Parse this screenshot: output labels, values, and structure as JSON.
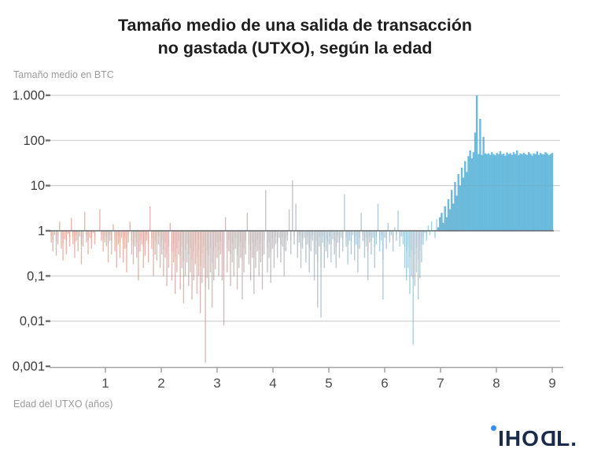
{
  "header": {
    "title_line1": "Tamaño medio de una salida de transacción",
    "title_line2": "no gastada (UTXO), según la edad"
  },
  "axes": {
    "y_caption": "Tamaño medio en BTC",
    "x_caption": "Edad del UTXO (años)"
  },
  "logo": {
    "part1": "IHO",
    "part2": "D",
    "part3": "L.",
    "dot_color": "#3a8ef0",
    "text_color": "#1b2b4a"
  },
  "chart_data": {
    "type": "bar",
    "title": "Tamaño medio de una salida de transacción no gastada (UTXO), según la edad",
    "xlabel": "Edad del UTXO (años)",
    "ylabel": "Tamaño medio en BTC",
    "y_scale": "log",
    "baseline": 1,
    "ylim": [
      0.001,
      1000
    ],
    "xlim": [
      0,
      9.1
    ],
    "grid": "horizontal",
    "y_ticks": [
      "1.000",
      "100",
      "10",
      "1",
      "0,1",
      "0,01",
      "0,001"
    ],
    "y_tick_values": [
      1000,
      100,
      10,
      1,
      0.1,
      0.01,
      0.001
    ],
    "x_ticks": [
      1,
      2,
      3,
      4,
      5,
      6,
      7,
      8,
      9
    ],
    "x_start": 0.03,
    "x_step": 0.03,
    "values": [
      0.55,
      0.35,
      0.8,
      0.28,
      0.5,
      1.6,
      0.4,
      0.22,
      0.65,
      0.3,
      0.85,
      0.45,
      1.9,
      0.5,
      0.25,
      0.6,
      0.35,
      0.75,
      0.18,
      0.45,
      2.6,
      0.55,
      0.3,
      0.7,
      0.4,
      0.9,
      0.5,
      1.0,
      1.0,
      3.0,
      0.6,
      0.35,
      0.55,
      0.45,
      0.2,
      0.6,
      0.3,
      1.4,
      0.35,
      0.15,
      0.5,
      0.25,
      0.7,
      0.2,
      0.4,
      0.12,
      0.55,
      1.6,
      0.3,
      0.18,
      0.45,
      0.25,
      0.08,
      0.35,
      0.5,
      0.15,
      0.28,
      0.6,
      0.2,
      3.5,
      0.4,
      0.1,
      0.3,
      0.22,
      0.5,
      0.15,
      0.3,
      0.1,
      0.25,
      0.06,
      0.15,
      1.5,
      0.08,
      0.2,
      0.04,
      0.12,
      0.3,
      0.05,
      0.15,
      0.025,
      0.1,
      0.2,
      0.06,
      0.12,
      0.03,
      0.08,
      0.18,
      0.04,
      0.1,
      0.015,
      0.07,
      0.15,
      0.0012,
      0.09,
      0.05,
      0.12,
      0.02,
      0.08,
      0.14,
      0.25,
      0.1,
      0.3,
      0.08,
      0.008,
      2.0,
      0.12,
      0.35,
      0.06,
      0.2,
      0.1,
      0.4,
      0.05,
      0.15,
      0.25,
      0.03,
      0.12,
      0.3,
      2.5,
      0.18,
      0.08,
      0.25,
      0.04,
      0.15,
      0.35,
      0.1,
      0.2,
      0.05,
      0.3,
      8.0,
      0.12,
      0.25,
      0.07,
      0.4,
      0.15,
      0.5,
      0.25,
      0.7,
      0.2,
      0.45,
      0.1,
      0.35,
      0.6,
      3.0,
      0.3,
      13,
      0.5,
      4.0,
      0.25,
      0.55,
      0.15,
      0.4,
      0.7,
      0.2,
      0.5,
      0.12,
      0.35,
      0.6,
      0.08,
      0.3,
      0.02,
      0.45,
      0.012,
      0.55,
      0.15,
      0.35,
      0.25,
      0.5,
      0.2,
      0.65,
      0.3,
      0.15,
      0.55,
      0.25,
      0.7,
      0.35,
      6.5,
      0.45,
      0.18,
      0.6,
      0.3,
      0.8,
      0.22,
      0.5,
      0.12,
      0.4,
      2.5,
      0.6,
      0.25,
      0.45,
      0.08,
      0.55,
      0.3,
      0.7,
      0.15,
      0.5,
      4.0,
      0.35,
      0.6,
      0.03,
      0.7,
      0.4,
      1.5,
      0.55,
      0.8,
      0.35,
      1.2,
      0.6,
      2.8,
      0.45,
      0.75,
      0.5,
      0.15,
      0.08,
      0.15,
      0.04,
      0.1,
      0.003,
      0.06,
      0.12,
      0.03,
      0.09,
      0.2,
      0.5,
      0.9,
      0.6,
      1.3,
      0.8,
      1.6,
      1.0,
      0.7,
      1.8,
      1.2,
      2.0,
      2.5,
      1.5,
      3.5,
      2.0,
      5.0,
      3.0,
      8.0,
      4.0,
      12,
      6.0,
      18,
      10,
      25,
      15,
      35,
      20,
      45,
      60,
      40,
      55,
      150,
      1000,
      50,
      300,
      48,
      120,
      52,
      50,
      52,
      48,
      55,
      50,
      47,
      53,
      50,
      58,
      49,
      51,
      46,
      54,
      50,
      52,
      48,
      55,
      50,
      60,
      47,
      52,
      49,
      53,
      50,
      48,
      55,
      51,
      46,
      52,
      50,
      57,
      48,
      53,
      50,
      49,
      55,
      52,
      47,
      50,
      53
    ],
    "color_stops": [
      [
        0,
        "#df8470"
      ],
      [
        1.5,
        "#d68878"
      ],
      [
        2.5,
        "#c38c84"
      ],
      [
        3.5,
        "#ab9695"
      ],
      [
        4.5,
        "#95a1aa"
      ],
      [
        5.5,
        "#83a8bc"
      ],
      [
        6.3,
        "#76adc8"
      ],
      [
        7.0,
        "#68b2d3"
      ],
      [
        7.5,
        "#5fb6da"
      ],
      [
        9,
        "#5fb6da"
      ]
    ],
    "grid_color": "#e4e4e4",
    "axis_color": "#a3a3a3",
    "baseline_color": "#5d6064",
    "y_label_color": "#3d3d3d",
    "x_label_color": "#4d4d4d"
  }
}
